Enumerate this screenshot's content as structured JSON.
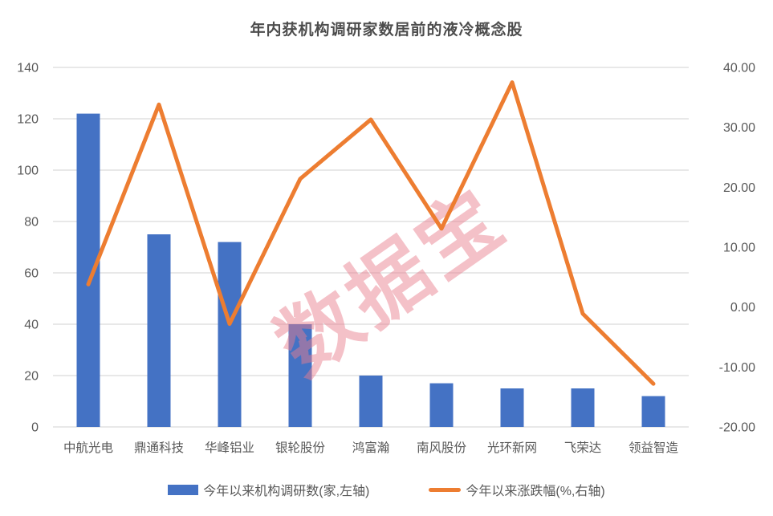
{
  "title": "年内获机构调研家数居前的液冷概念股",
  "watermark": {
    "text": "数据宝",
    "color": "#EA7E8E",
    "opacity": 0.48,
    "rotation_deg": -35
  },
  "legend": [
    {
      "label": "今年以来机构调研数(家,左轴)",
      "type": "bar",
      "color": "#4472C4"
    },
    {
      "label": "今年以来涨跌幅(%,右轴)",
      "type": "line",
      "color": "#ED7D31"
    }
  ],
  "chart_data": {
    "type": "bar",
    "subtype": "bar+line dual axis",
    "title": "年内获机构调研家数居前的液冷概念股",
    "categories": [
      "中航光电",
      "鼎通科技",
      "华峰铝业",
      "银轮股份",
      "鸿富瀚",
      "南风股份",
      "光环新网",
      "飞荣达",
      "领益智造"
    ],
    "series": [
      {
        "name": "今年以来机构调研数(家,左轴)",
        "type": "bar",
        "axis": "left",
        "color": "#4472C4",
        "values": [
          122,
          75,
          72,
          40,
          20,
          17,
          15,
          15,
          12
        ]
      },
      {
        "name": "今年以来涨跌幅(%,右轴)",
        "type": "line",
        "axis": "right",
        "color": "#ED7D31",
        "values": [
          3.8,
          33.8,
          -2.8,
          21.4,
          31.3,
          13.1,
          37.5,
          -1.1,
          -12.8
        ]
      }
    ],
    "left_axis": {
      "min": 0,
      "max": 140,
      "step": 20,
      "ticks": [
        140,
        120,
        100,
        80,
        60,
        40,
        20,
        0
      ]
    },
    "right_axis": {
      "min": -20,
      "max": 40,
      "step": 10,
      "ticks": [
        "40.00",
        "30.00",
        "20.00",
        "10.00",
        "0.00",
        "-10.00",
        "-20.00"
      ]
    },
    "grid": true,
    "grid_color": "#D9D9D9",
    "axis_text_color": "#595959",
    "legend_position": "bottom"
  }
}
